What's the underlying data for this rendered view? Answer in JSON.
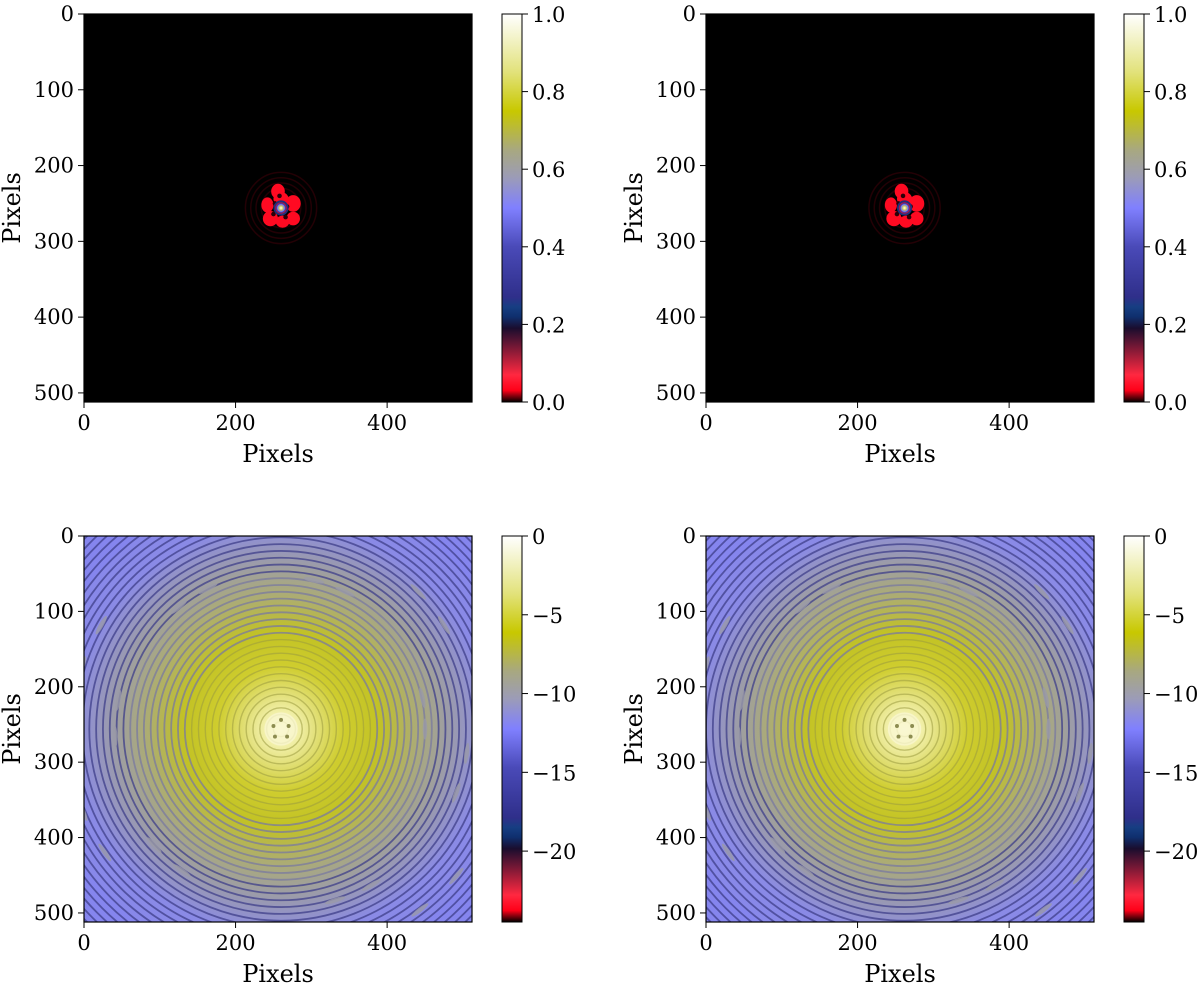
{
  "colormap": {
    "name": "gist_stern-like",
    "stops": [
      {
        "t": 0.0,
        "color": "#000000"
      },
      {
        "t": 0.03,
        "color": "#ff0018"
      },
      {
        "t": 0.07,
        "color": "#ff2840"
      },
      {
        "t": 0.19,
        "color": "#1a0d2e"
      },
      {
        "t": 0.22,
        "color": "#0f2f6e"
      },
      {
        "t": 0.245,
        "color": "#163e82"
      },
      {
        "t": 0.27,
        "color": "#2f2f8a"
      },
      {
        "t": 0.4,
        "color": "#4a4ab8"
      },
      {
        "t": 0.5,
        "color": "#8080ff"
      },
      {
        "t": 0.58,
        "color": "#9c9cb6"
      },
      {
        "t": 0.65,
        "color": "#a8a880"
      },
      {
        "t": 0.75,
        "color": "#c8c800"
      },
      {
        "t": 0.85,
        "color": "#e2e27a"
      },
      {
        "t": 1.0,
        "color": "#ffffff"
      }
    ]
  },
  "chart_data": [
    {
      "type": "heatmap",
      "panel": "top-left",
      "xlabel": "Pixels",
      "ylabel": "Pixels",
      "xlim": [
        0,
        512
      ],
      "ylim": [
        512,
        0
      ],
      "xticks": [
        0,
        200,
        400
      ],
      "yticks": [
        0,
        100,
        200,
        300,
        400,
        500
      ],
      "colorbar": {
        "min": 0.0,
        "max": 1.0,
        "ticks": [
          "0.0",
          "0.2",
          "0.4",
          "0.6",
          "0.8",
          "1.0"
        ],
        "tick_values": [
          0.0,
          0.2,
          0.4,
          0.6,
          0.8,
          1.0
        ]
      },
      "scale": "linear",
      "peak": {
        "x": 260,
        "y": 256
      }
    },
    {
      "type": "heatmap",
      "panel": "top-right",
      "xlabel": "Pixels",
      "ylabel": "Pixels",
      "xlim": [
        0,
        512
      ],
      "ylim": [
        512,
        0
      ],
      "xticks": [
        0,
        200,
        400
      ],
      "yticks": [
        0,
        100,
        200,
        300,
        400,
        500
      ],
      "colorbar": {
        "min": 0.0,
        "max": 1.0,
        "ticks": [
          "0.0",
          "0.2",
          "0.4",
          "0.6",
          "0.8",
          "1.0"
        ],
        "tick_values": [
          0.0,
          0.2,
          0.4,
          0.6,
          0.8,
          1.0
        ]
      },
      "scale": "linear",
      "peak": {
        "x": 262,
        "y": 256
      }
    },
    {
      "type": "heatmap",
      "panel": "bottom-left",
      "xlabel": "Pixels",
      "ylabel": "Pixels",
      "xlim": [
        0,
        512
      ],
      "ylim": [
        512,
        0
      ],
      "xticks": [
        0,
        200,
        400
      ],
      "yticks": [
        0,
        100,
        200,
        300,
        400,
        500
      ],
      "colorbar": {
        "min": -24.5,
        "max": 0,
        "ticks": [
          "0",
          "−5",
          "−10",
          "−15",
          "−20"
        ],
        "tick_values": [
          0,
          -5,
          -10,
          -15,
          -20
        ]
      },
      "scale": "log",
      "peak": {
        "x": 260,
        "y": 256
      }
    },
    {
      "type": "heatmap",
      "panel": "bottom-right",
      "xlabel": "Pixels",
      "ylabel": "Pixels",
      "xlim": [
        0,
        512
      ],
      "ylim": [
        512,
        0
      ],
      "xticks": [
        0,
        200,
        400
      ],
      "yticks": [
        0,
        100,
        200,
        300,
        400,
        500
      ],
      "colorbar": {
        "min": -24.5,
        "max": 0,
        "ticks": [
          "0",
          "−5",
          "−10",
          "−15",
          "−20"
        ],
        "tick_values": [
          0,
          -5,
          -10,
          -15,
          -20
        ]
      },
      "scale": "log",
      "peak": {
        "x": 262,
        "y": 256
      }
    }
  ]
}
